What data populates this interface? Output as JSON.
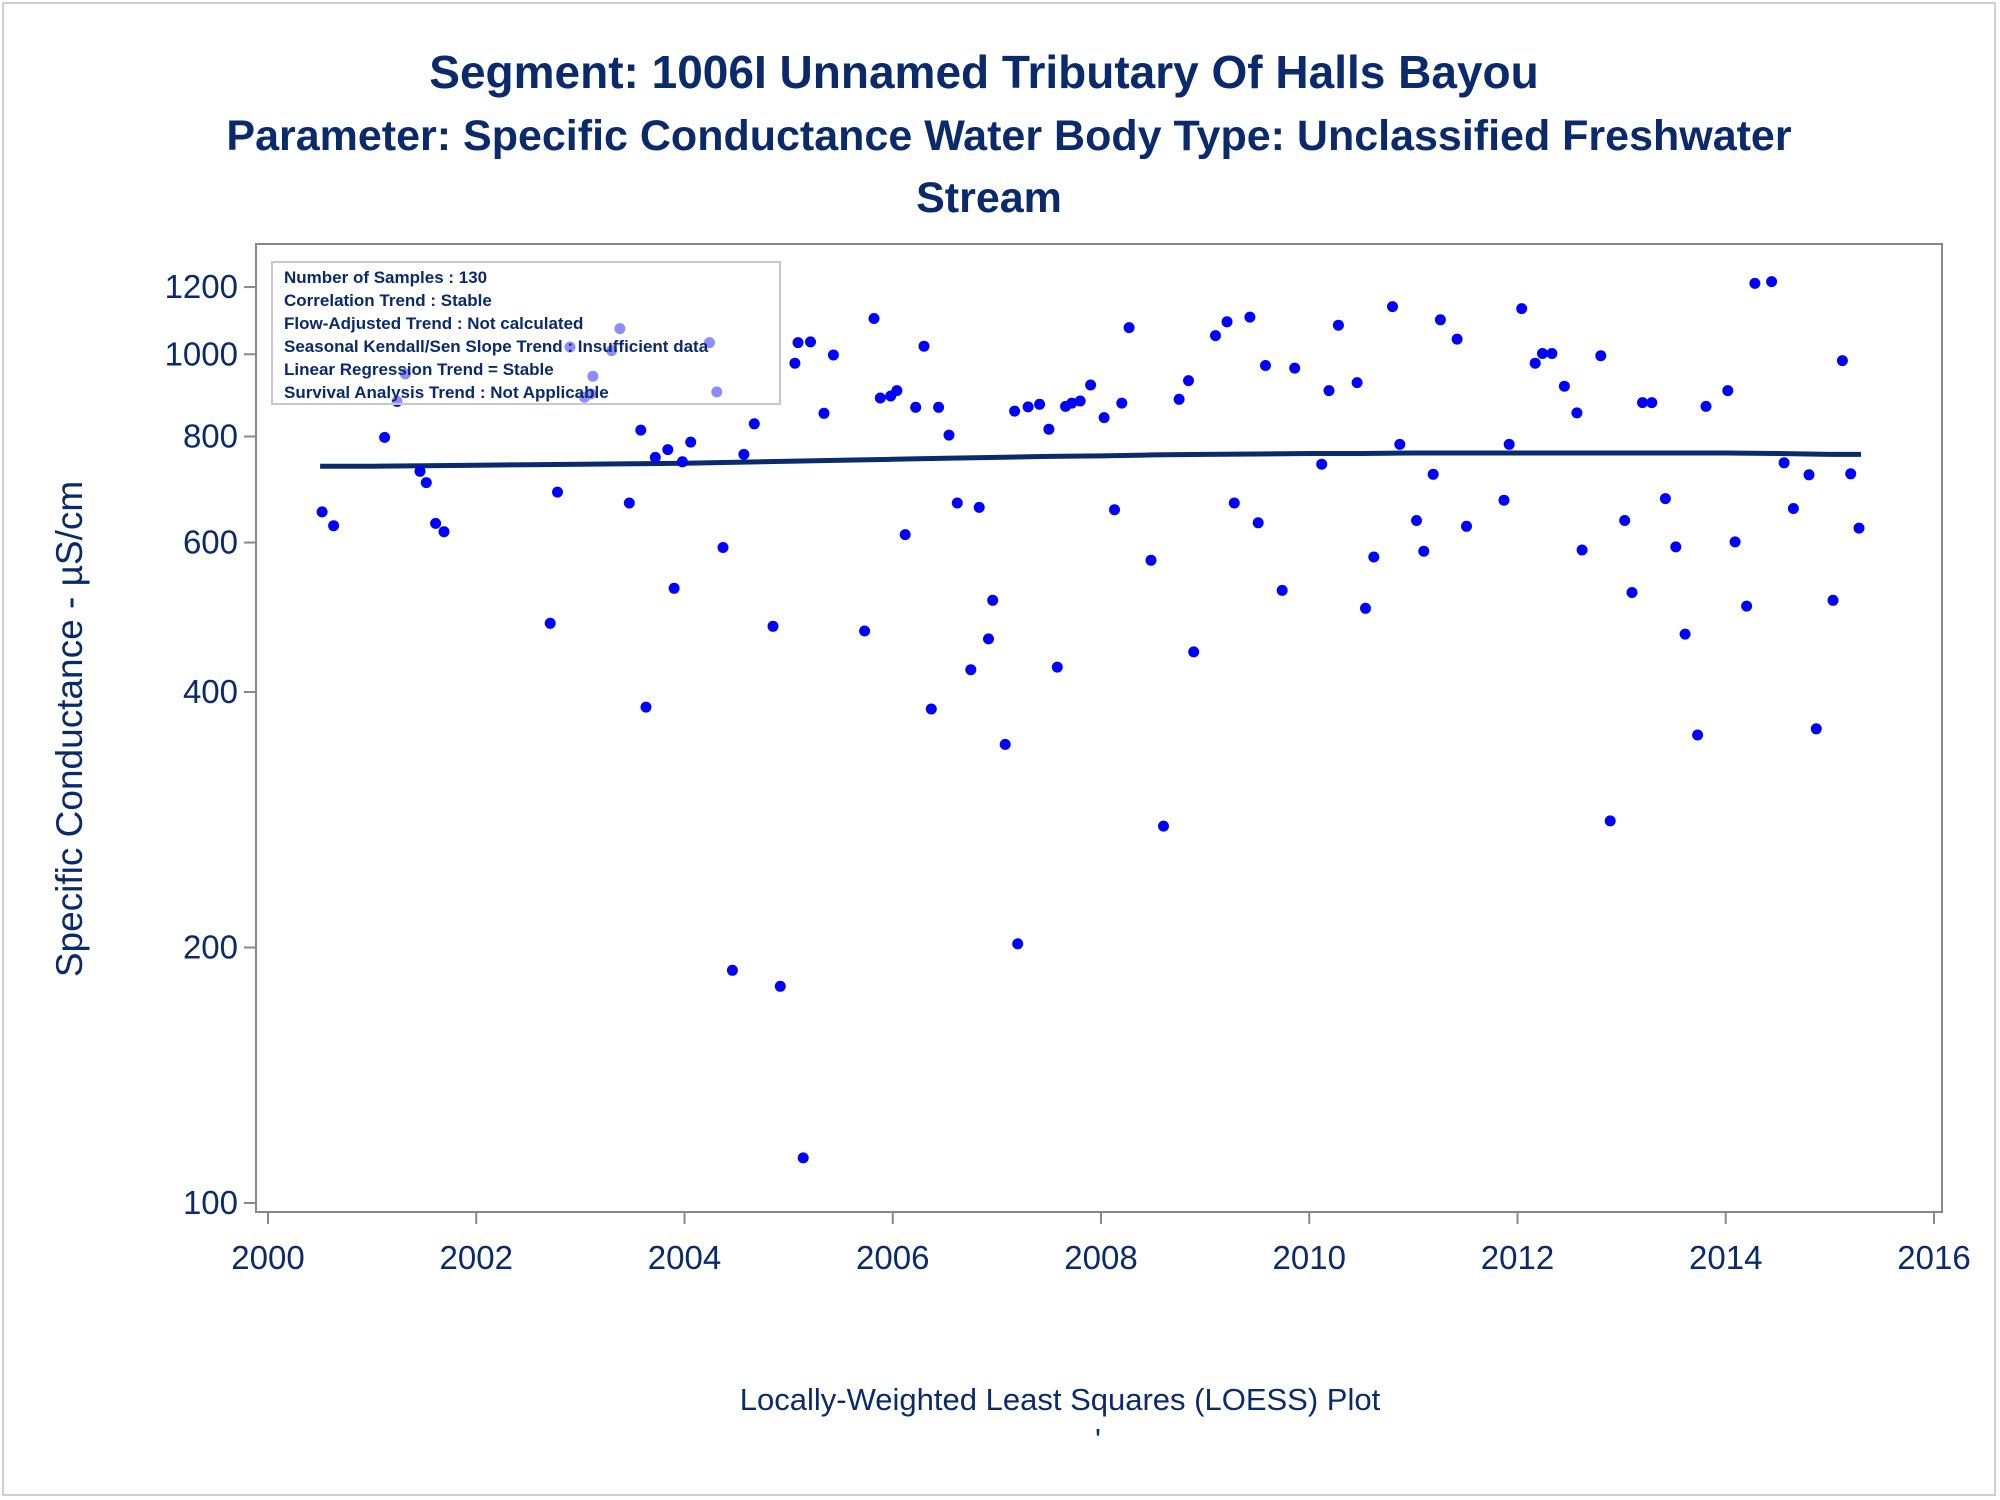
{
  "chart_data": {
    "type": "scatter",
    "title": "Segment: 1006I  Unnamed Tributary Of Halls Bayou",
    "subtitle_lines": [
      "Parameter: Specific Conductance   Water Body Type: Unclassified Freshwater",
      "Stream"
    ],
    "xlabel": "Locally-Weighted Least Squares (LOESS) Plot",
    "footnote_mark": "'",
    "ylabel": "Specific Conductance -  µS/cm",
    "yscale": "log",
    "xlim": [
      2000,
      2016
    ],
    "ylim": [
      100,
      1250
    ],
    "xticks": [
      2000,
      2002,
      2004,
      2006,
      2008,
      2010,
      2012,
      2014,
      2016
    ],
    "xtick_labels": [
      "2000",
      "2002",
      "2004",
      "2006",
      "2008",
      "2010",
      "2012",
      "2014",
      "2016"
    ],
    "yticks": [
      100,
      200,
      400,
      600,
      800,
      1000,
      1200
    ],
    "ytick_labels": [
      "100",
      "200",
      "400",
      "600",
      "800",
      "1000",
      "1200"
    ],
    "grid": false,
    "legend": "none",
    "colors": {
      "points": "#0000ff",
      "trend_line": "#0a2a6b",
      "text": "#0a2a6b",
      "axes": "#888888"
    },
    "stats_box": {
      "placement": "top-left",
      "lines": [
        "Number of Samples : 130",
        "Correlation Trend : Stable",
        "Flow-Adjusted Trend : Not calculated",
        "Seasonal Kendall/Sen Slope Trend : Insufficient data",
        "Linear Regression Trend = Stable",
        "Survival Analysis Trend : Not Applicable"
      ]
    },
    "series": [
      {
        "type": "scatter",
        "x": [
          2000.52,
          2000.63,
          2001.12,
          2001.24,
          2001.32,
          2001.46,
          2001.52,
          2001.61,
          2001.69,
          2002.71,
          2002.78,
          2002.9,
          2003.04,
          2003.1,
          2003.12,
          2003.3,
          2003.38,
          2003.47,
          2003.58,
          2003.63,
          2003.72,
          2003.84,
          2003.9,
          2003.98,
          2004.06,
          2004.24,
          2004.31,
          2004.37,
          2004.46,
          2004.57,
          2004.67,
          2004.85,
          2004.92,
          2005.06,
          2005.14,
          2005.21,
          2005.34,
          2005.43,
          2005.73,
          2005.82,
          2005.88,
          2005.98,
          2006.04,
          2006.12,
          2006.22,
          2006.3,
          2006.37,
          2006.44,
          2006.54,
          2006.62,
          2006.75,
          2006.83,
          2006.92,
          2006.96,
          2007.08,
          2007.17,
          2007.2,
          2007.3,
          2007.41,
          2007.5,
          2007.58,
          2007.66,
          2007.72,
          2007.8,
          2007.9,
          2008.03,
          2008.13,
          2008.2,
          2008.27,
          2008.48,
          2008.6,
          2008.75,
          2008.84,
          2008.89,
          2009.1,
          2009.21,
          2009.28,
          2009.43,
          2009.51,
          2009.58,
          2009.74,
          2009.86,
          2010.12,
          2010.19,
          2010.28,
          2010.46,
          2010.54,
          2010.62,
          2010.8,
          2010.87,
          2011.03,
          2011.1,
          2011.19,
          2011.26,
          2011.42,
          2011.51,
          2011.87,
          2011.92,
          2012.04,
          2012.17,
          2012.24,
          2012.33,
          2012.45,
          2012.57,
          2012.62,
          2012.8,
          2012.89,
          2013.03,
          2013.1,
          2013.2,
          2013.29,
          2013.42,
          2013.52,
          2013.61,
          2013.73,
          2013.81,
          2014.02,
          2014.09,
          2014.2,
          2014.28,
          2014.44,
          2014.56,
          2014.65,
          2014.8,
          2014.87,
          2015.03,
          2015.12,
          2015.2,
          2015.28,
          2005.09
        ],
        "y": [
          652,
          628,
          798,
          880,
          948,
          728,
          706,
          632,
          618,
          482,
          688,
          1020,
          890,
          898,
          942,
          1010,
          1072,
          668,
          814,
          384,
          756,
          772,
          530,
          747,
          788,
          1032,
          903,
          592,
          188,
          762,
          828,
          478,
          180,
          976,
          113,
          1034,
          852,
          998,
          472,
          1102,
          888,
          893,
          906,
          613,
          866,
          1022,
          382,
          866,
          803,
          668,
          425,
          660,
          462,
          513,
          347,
          857,
          202,
          867,
          873,
          816,
          428,
          868,
          876,
          881,
          920,
          842,
          656,
          876,
          1075,
          572,
          278,
          885,
          931,
          446,
          1052,
          1092,
          668,
          1106,
          633,
          970,
          527,
          963,
          742,
          906,
          1082,
          926,
          502,
          577,
          1138,
          783,
          637,
          586,
          722,
          1098,
          1042,
          627,
          673,
          783,
          1132,
          976,
          1002,
          1002,
          917,
          853,
          588,
          996,
          282,
          637,
          524,
          877,
          877,
          676,
          593,
          468,
          356,
          868,
          906,
          601,
          505,
          1212,
          1218,
          745,
          658,
          721,
          362,
          513,
          983,
          723,
          624,
          1032
        ]
      },
      {
        "type": "line",
        "x": [
          2000.5,
          2001.0,
          2001.5,
          2002.0,
          2002.5,
          2003.0,
          2003.5,
          2004.0,
          2004.5,
          2005.0,
          2005.5,
          2006.0,
          2006.5,
          2007.0,
          2007.5,
          2008.0,
          2008.5,
          2009.0,
          2009.5,
          2010.0,
          2010.5,
          2011.0,
          2011.5,
          2012.0,
          2012.5,
          2013.0,
          2013.5,
          2014.0,
          2014.5,
          2015.0,
          2015.3
        ],
        "y": [
          738,
          738,
          739,
          740,
          741,
          742,
          743,
          744,
          746,
          748,
          750,
          752,
          754,
          756,
          758,
          759,
          761,
          762,
          763,
          764,
          764,
          765,
          765,
          765,
          765,
          765,
          765,
          765,
          764,
          762,
          762
        ]
      }
    ]
  }
}
